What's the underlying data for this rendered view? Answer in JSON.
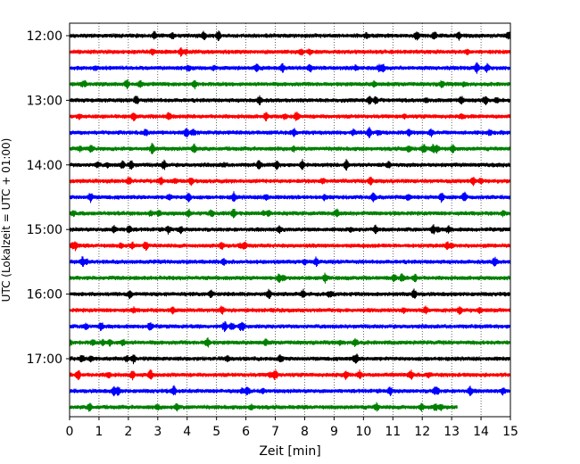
{
  "chart_data": {
    "type": "line",
    "xlabel": "Zeit  [min]",
    "ylabel": "UTC (Lokalzeit = UTC + 01:00)",
    "xlim": [
      0,
      15
    ],
    "x_ticks": [
      0,
      1,
      2,
      3,
      4,
      5,
      6,
      7,
      8,
      9,
      10,
      11,
      12,
      13,
      14,
      15
    ],
    "x_tick_labels": [
      "0",
      "1",
      "2",
      "3",
      "4",
      "5",
      "6",
      "7",
      "8",
      "9",
      "10",
      "11",
      "12",
      "13",
      "14",
      "15"
    ],
    "y_tick_labels": [
      "12:00",
      "13:00",
      "14:00",
      "15:00",
      "16:00",
      "17:00"
    ],
    "x_grid": "dotted",
    "trace_interval_minutes": 15,
    "trace_start": "12:00",
    "trace_end": "17:45",
    "last_trace_end_min": 13.2,
    "series_colors": [
      "#000000",
      "#ff0000",
      "#0000ff",
      "#008000"
    ]
  }
}
